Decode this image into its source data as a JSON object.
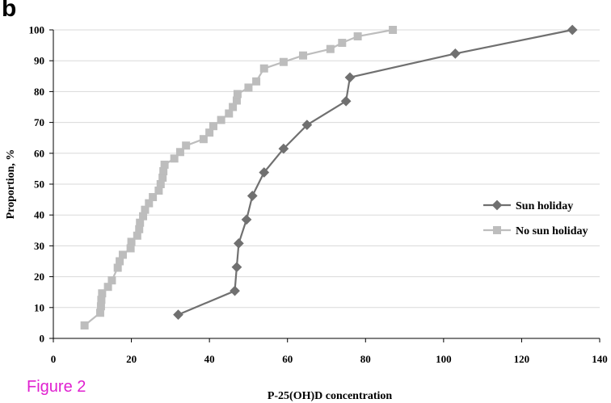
{
  "panel_label": "b",
  "figure_caption": "Figure 2",
  "colors": {
    "sun": "#707070",
    "nosun": "#bdbdbd",
    "grid": "#d9d9d9",
    "caption": "#e020d0"
  },
  "chart_data": {
    "type": "line",
    "xlabel": "P-25(OH)D  concentration",
    "ylabel": "Proportion, %",
    "xlim": [
      0,
      140
    ],
    "ylim": [
      0,
      100
    ],
    "xticks": [
      0,
      20,
      40,
      60,
      80,
      100,
      120,
      140
    ],
    "yticks": [
      0,
      10,
      20,
      30,
      40,
      50,
      60,
      70,
      80,
      90,
      100
    ],
    "grid": "horizontal",
    "legend_position": "right",
    "series": [
      {
        "name": "Sun holiday",
        "marker": "diamond",
        "color": "#707070",
        "points": [
          [
            32,
            7.7
          ],
          [
            46.5,
            15.4
          ],
          [
            47,
            23.1
          ],
          [
            47.5,
            30.8
          ],
          [
            49.5,
            38.5
          ],
          [
            51,
            46.2
          ],
          [
            54,
            53.8
          ],
          [
            59,
            61.5
          ],
          [
            65,
            69.2
          ],
          [
            75,
            76.9
          ],
          [
            76,
            84.6
          ],
          [
            103,
            92.3
          ],
          [
            133,
            100
          ]
        ]
      },
      {
        "name": "No sun holiday",
        "marker": "square",
        "color": "#bdbdbd",
        "points": [
          [
            8,
            4.2
          ],
          [
            12,
            8.3
          ],
          [
            12.2,
            10.4
          ],
          [
            12.3,
            12.5
          ],
          [
            12.5,
            14.6
          ],
          [
            14,
            16.7
          ],
          [
            15,
            18.8
          ],
          [
            16.5,
            22.9
          ],
          [
            17,
            25
          ],
          [
            17.8,
            27.1
          ],
          [
            19.8,
            29.2
          ],
          [
            20,
            31.3
          ],
          [
            21.5,
            33.3
          ],
          [
            22,
            35.4
          ],
          [
            22.2,
            37.5
          ],
          [
            23,
            39.6
          ],
          [
            23.5,
            41.7
          ],
          [
            24.5,
            43.8
          ],
          [
            25.5,
            45.8
          ],
          [
            27,
            47.9
          ],
          [
            27.5,
            50
          ],
          [
            28,
            52.1
          ],
          [
            28.2,
            54.2
          ],
          [
            28.5,
            56.3
          ],
          [
            31,
            58.3
          ],
          [
            32.5,
            60.4
          ],
          [
            34,
            62.5
          ],
          [
            38.5,
            64.6
          ],
          [
            40,
            66.7
          ],
          [
            41,
            68.8
          ],
          [
            43,
            70.8
          ],
          [
            45,
            72.9
          ],
          [
            46,
            75
          ],
          [
            47,
            77.1
          ],
          [
            47.2,
            79.2
          ],
          [
            50,
            81.3
          ],
          [
            52,
            83.3
          ],
          [
            54,
            87.5
          ],
          [
            59,
            89.6
          ],
          [
            64,
            91.7
          ],
          [
            71,
            93.8
          ],
          [
            74,
            95.8
          ],
          [
            78,
            97.9
          ],
          [
            87,
            100
          ]
        ]
      }
    ]
  }
}
